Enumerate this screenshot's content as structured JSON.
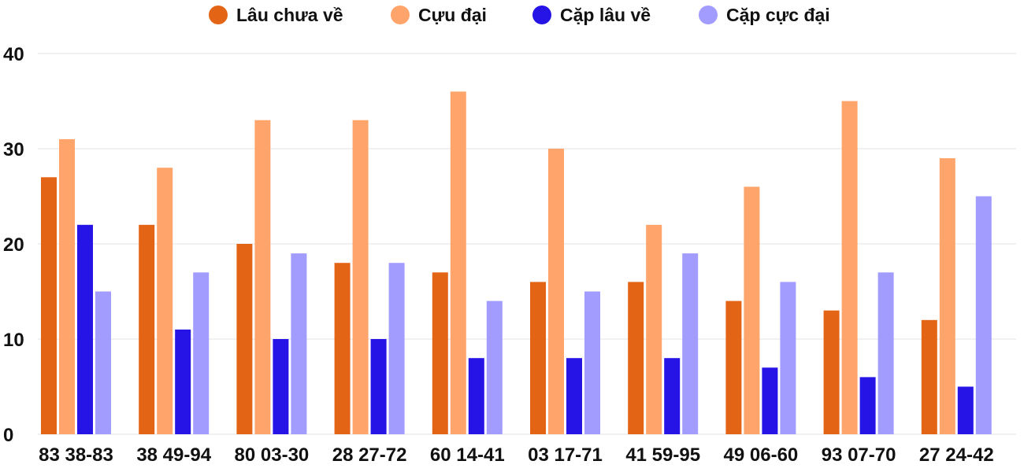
{
  "chart_data": {
    "type": "bar",
    "title": "",
    "xlabel": "",
    "ylabel": "",
    "ylim": [
      0,
      40
    ],
    "yticks": [
      0,
      10,
      20,
      30,
      40
    ],
    "grid": true,
    "legend_position": "top",
    "categories": [
      "83 38-83",
      "38 49-94",
      "80 03-30",
      "28 27-72",
      "60 14-41",
      "03 17-71",
      "41 59-95",
      "49 06-60",
      "93 07-70",
      "27 24-42"
    ],
    "series": [
      {
        "name": "Lâu chưa về",
        "color": "#e46416",
        "values": [
          27,
          22,
          20,
          18,
          17,
          16,
          16,
          14,
          13,
          12
        ]
      },
      {
        "name": "Cựu đại",
        "color": "#ffa56b",
        "values": [
          31,
          28,
          33,
          33,
          36,
          30,
          22,
          26,
          35,
          29
        ]
      },
      {
        "name": "Cặp lâu về",
        "color": "#2614e6",
        "values": [
          22,
          11,
          10,
          10,
          8,
          8,
          8,
          7,
          6,
          5
        ]
      },
      {
        "name": "Cặp cực đại",
        "color": "#a39cff",
        "values": [
          15,
          17,
          19,
          18,
          14,
          15,
          19,
          16,
          17,
          25
        ]
      }
    ]
  }
}
